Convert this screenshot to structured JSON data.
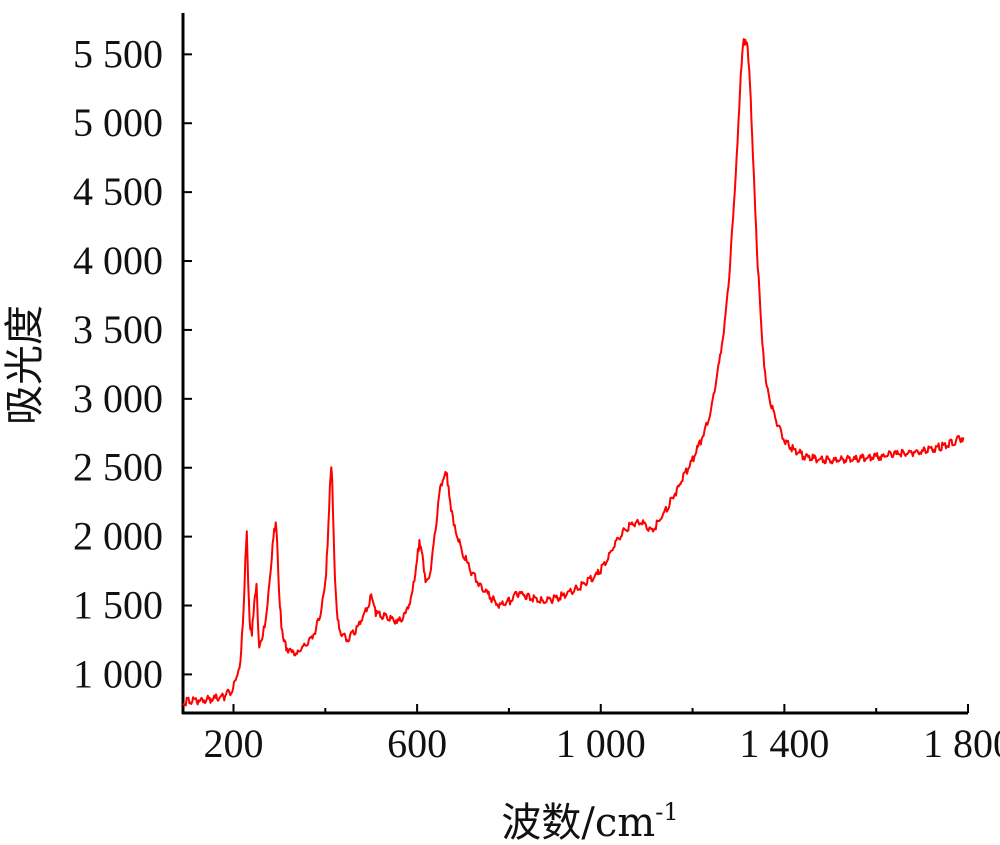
{
  "chart_data": {
    "type": "line",
    "title": "",
    "xlabel": "波数/cm",
    "xlabel_sup": "-1",
    "ylabel": "吸光度",
    "xlim": [
      90,
      1800
    ],
    "ylim": [
      720,
      5800
    ],
    "x_ticks": [
      200,
      600,
      1000,
      1400,
      1800
    ],
    "x_tick_labels": [
      "200",
      "600",
      "1 000",
      "1 400",
      "1 800"
    ],
    "x_minor_ticks": [
      400,
      800,
      1200,
      1600
    ],
    "y_ticks": [
      1000,
      1500,
      2000,
      2500,
      3000,
      3500,
      4000,
      4500,
      5000,
      5500
    ],
    "y_tick_labels": [
      "1 000",
      "1 500",
      "2 000",
      "2 500",
      "3 000",
      "3 500",
      "4 000",
      "4 500",
      "5 000",
      "5 500"
    ],
    "grid": false,
    "series": [
      {
        "color": "#ff0000",
        "x": [
          90,
          120,
          150,
          180,
          195,
          205,
          215,
          222,
          226,
          229,
          232,
          235,
          240,
          245,
          250,
          253,
          256,
          262,
          270,
          280,
          287,
          292,
          295,
          298,
          301,
          306,
          315,
          325,
          340,
          360,
          380,
          390,
          400,
          405,
          410,
          413,
          415,
          418,
          421,
          425,
          432,
          440,
          450,
          470,
          490,
          500,
          505,
          510,
          520,
          540,
          560,
          575,
          590,
          600,
          605,
          610,
          615,
          620,
          630,
          640,
          650,
          660,
          665,
          670,
          680,
          700,
          720,
          740,
          760,
          780,
          800,
          820,
          840,
          860,
          880,
          900,
          930,
          960,
          990,
          1010,
          1030,
          1050,
          1070,
          1090,
          1110,
          1120,
          1140,
          1160,
          1180,
          1200,
          1220,
          1240,
          1250,
          1260,
          1270,
          1280,
          1290,
          1300,
          1305,
          1310,
          1315,
          1320,
          1325,
          1330,
          1335,
          1340,
          1350,
          1360,
          1370,
          1380,
          1390,
          1400,
          1420,
          1440,
          1460,
          1500,
          1550,
          1600,
          1650,
          1700,
          1750,
          1790
        ],
        "y": [
          800,
          810,
          820,
          840,
          880,
          950,
          1100,
          1450,
          1850,
          2050,
          1650,
          1380,
          1300,
          1500,
          1650,
          1400,
          1220,
          1240,
          1400,
          1700,
          2000,
          2100,
          1950,
          1700,
          1500,
          1300,
          1200,
          1160,
          1170,
          1220,
          1330,
          1450,
          1650,
          1950,
          2350,
          2500,
          2400,
          2050,
          1700,
          1450,
          1320,
          1270,
          1260,
          1340,
          1480,
          1570,
          1520,
          1450,
          1430,
          1400,
          1390,
          1430,
          1600,
          1850,
          1960,
          1900,
          1760,
          1650,
          1780,
          2050,
          2350,
          2470,
          2440,
          2300,
          2080,
          1880,
          1730,
          1640,
          1560,
          1490,
          1530,
          1590,
          1570,
          1540,
          1530,
          1550,
          1590,
          1650,
          1720,
          1800,
          1950,
          2040,
          2100,
          2100,
          2050,
          2080,
          2180,
          2300,
          2430,
          2560,
          2710,
          2900,
          3100,
          3300,
          3550,
          3900,
          4400,
          5000,
          5350,
          5580,
          5600,
          5550,
          5300,
          4900,
          4500,
          4100,
          3500,
          3100,
          2980,
          2860,
          2780,
          2700,
          2630,
          2590,
          2570,
          2550,
          2560,
          2580,
          2600,
          2620,
          2660,
          2720
        ]
      }
    ]
  }
}
